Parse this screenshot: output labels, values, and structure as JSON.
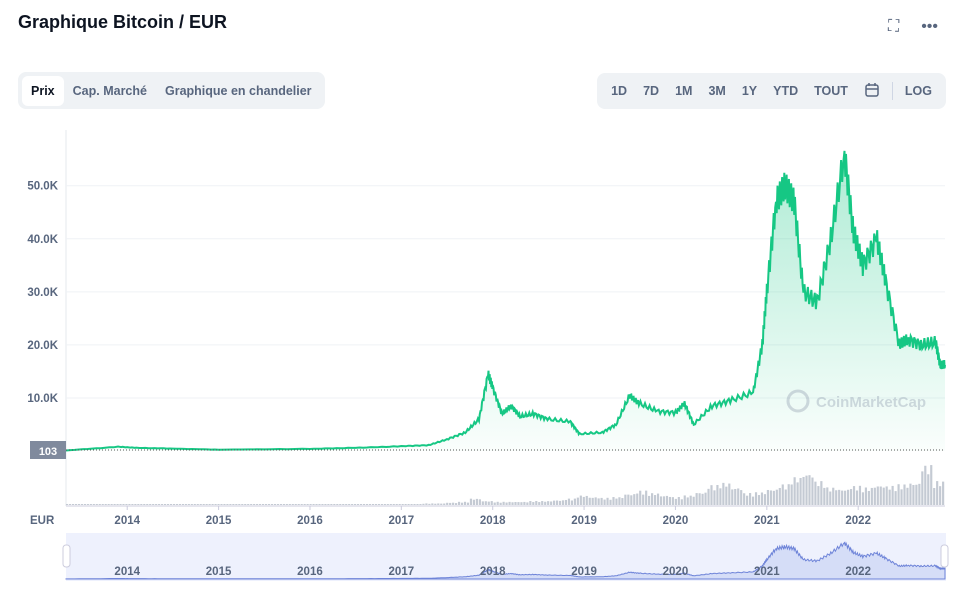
{
  "header": {
    "title": "Graphique Bitcoin / EUR",
    "fullscreen_icon": "expand-icon",
    "more_icon": "more-dots-icon"
  },
  "tabs": [
    {
      "label": "Prix",
      "active": true
    },
    {
      "label": "Cap. Marché"
    },
    {
      "label": "Graphique en chandelier"
    }
  ],
  "ranges": [
    "1D",
    "7D",
    "1M",
    "3M",
    "1Y",
    "YTD",
    "TOUT"
  ],
  "calendar_icon": "calendar-icon",
  "log_label": "LOG",
  "colors": {
    "line": "#16c784",
    "navigator": "#6d83d8"
  },
  "chart_data": {
    "type": "line",
    "title": "Graphique Bitcoin / EUR",
    "currency_label": "EUR",
    "watermark": "CoinMarketCap",
    "current_marker": "103",
    "yticks": [
      "10.0K",
      "20.0K",
      "30.0K",
      "40.0K",
      "50.0K"
    ],
    "ytick_values": [
      10000,
      20000,
      30000,
      40000,
      50000
    ],
    "xticks": [
      "2014",
      "2015",
      "2016",
      "2017",
      "2018",
      "2019",
      "2020",
      "2021",
      "2022"
    ],
    "xlim": [
      2013.33,
      2022.95
    ],
    "ylim": [
      0,
      60500
    ],
    "series": [
      {
        "name": "Prix",
        "x": [
          2013.33,
          2013.9,
          2014.1,
          2014.5,
          2015,
          2016,
          2016.5,
          2017,
          2017.3,
          2017.5,
          2017.7,
          2017.85,
          2017.95,
          2018.0,
          2018.1,
          2018.2,
          2018.3,
          2018.45,
          2018.6,
          2018.85,
          2018.95,
          2019.2,
          2019.35,
          2019.5,
          2019.6,
          2019.8,
          2020,
          2020.1,
          2020.2,
          2020.4,
          2020.6,
          2020.85,
          2020.95,
          2021.0,
          2021.1,
          2021.2,
          2021.3,
          2021.4,
          2021.55,
          2021.7,
          2021.85,
          2021.95,
          2022.05,
          2022.2,
          2022.3,
          2022.45,
          2022.55,
          2022.7,
          2022.85,
          2022.9,
          2022.95
        ],
        "y": [
          100,
          800,
          600,
          450,
          250,
          400,
          600,
          900,
          1100,
          2200,
          3500,
          6000,
          14500,
          12000,
          7000,
          8500,
          6500,
          7000,
          6000,
          5500,
          3200,
          3500,
          5000,
          10500,
          9000,
          7500,
          7200,
          9000,
          5000,
          8500,
          9500,
          11000,
          20000,
          30000,
          47000,
          50000,
          47000,
          30000,
          28000,
          40000,
          56000,
          41000,
          35000,
          40000,
          32000,
          20000,
          21000,
          20000,
          20500,
          16000,
          16200
        ]
      }
    ],
    "volume_relative": [
      1,
      1,
      1,
      1,
      1,
      1,
      1,
      1,
      1,
      1,
      1,
      1,
      1,
      1,
      1,
      1,
      1,
      1,
      1,
      1,
      1,
      1,
      1,
      1,
      1,
      1,
      1,
      1,
      1,
      1,
      2,
      2,
      3,
      4,
      8,
      5,
      4,
      4,
      4,
      5,
      5,
      6,
      8,
      12,
      10,
      9,
      10,
      14,
      18,
      15,
      12,
      10,
      12,
      16,
      25,
      28,
      22,
      15,
      16,
      20,
      26,
      35,
      40,
      30,
      22,
      20,
      24,
      22,
      25,
      24,
      26,
      28,
      50,
      30
    ]
  }
}
